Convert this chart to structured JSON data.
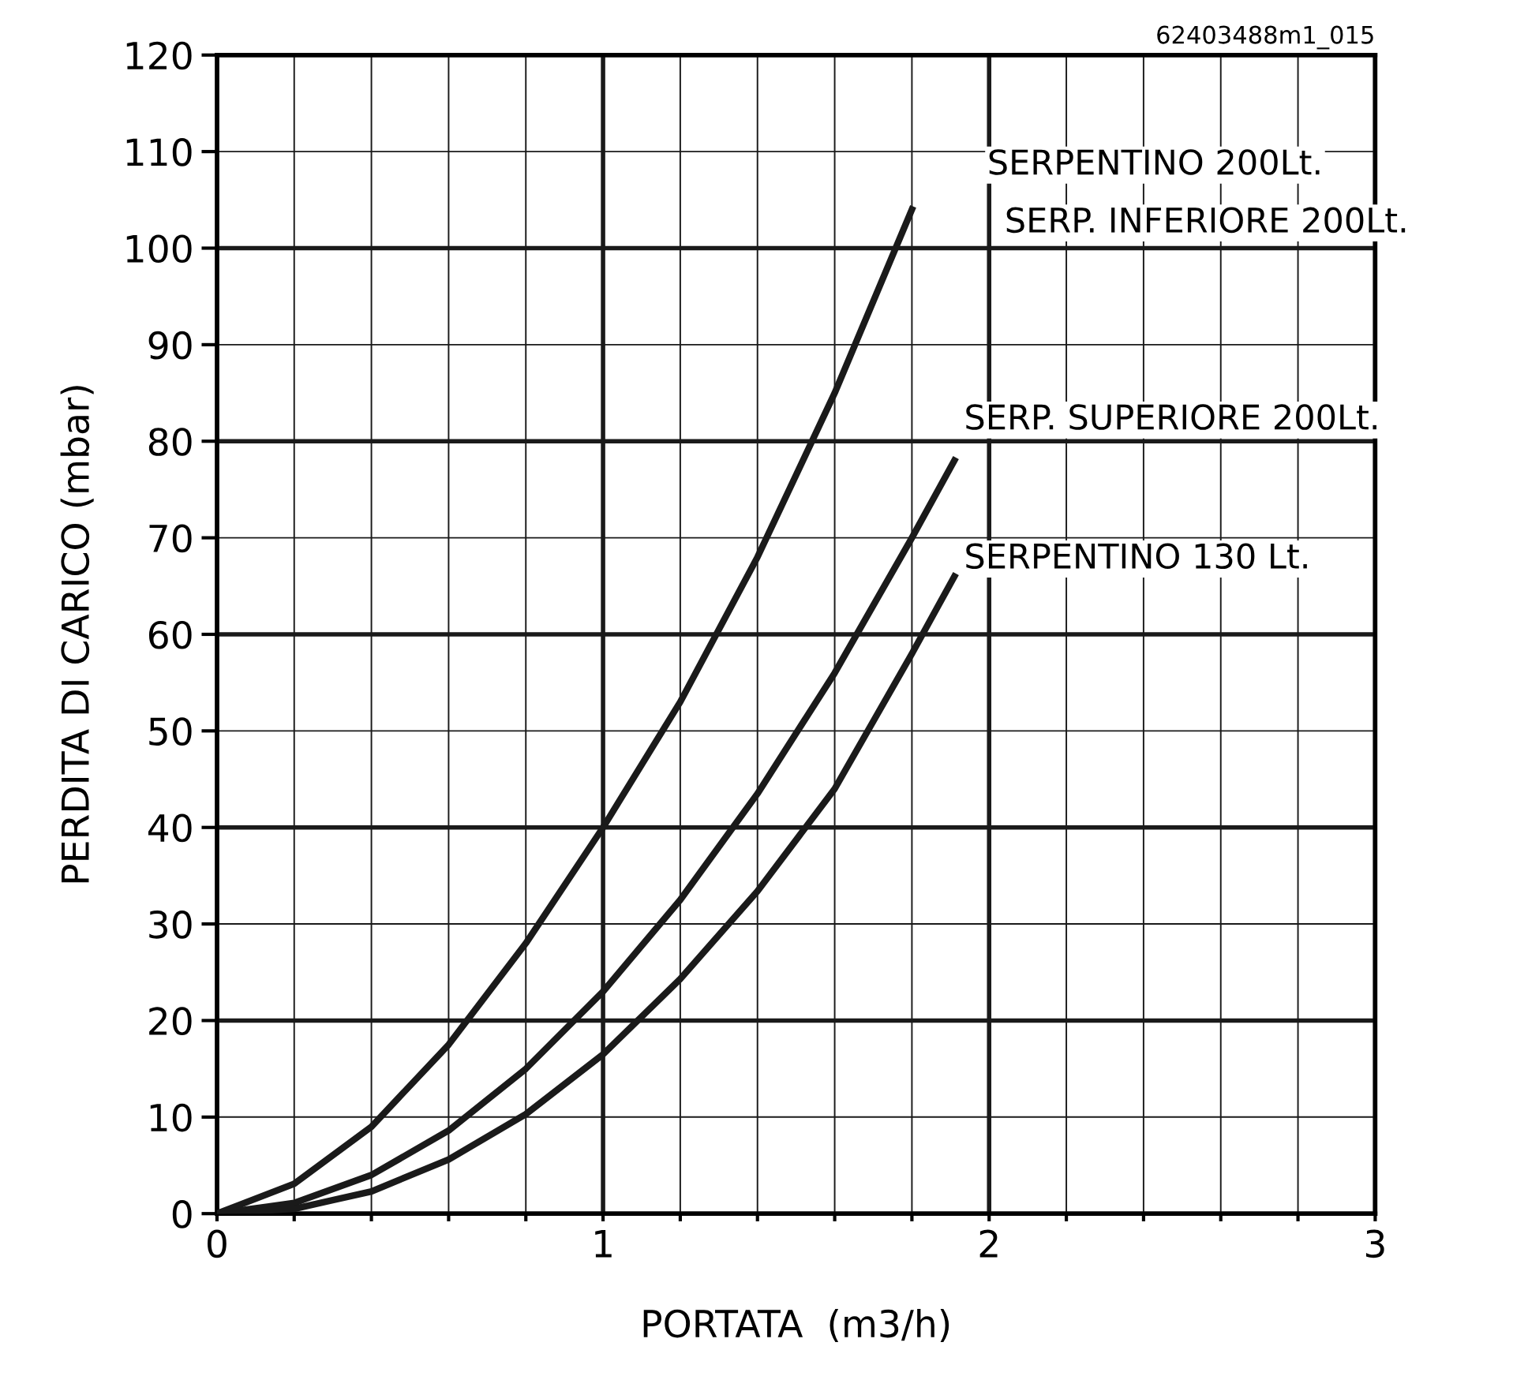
{
  "chart_data": {
    "type": "line",
    "xlabel": "PORTATA  (m3/h)",
    "ylabel": "PERDITA DI CARICO (mbar)",
    "annotations": [
      "62403488m1_015",
      "SERPENTINO 200Lt.",
      "SERP. INFERIORE 200Lt.",
      "SERP. SUPERIORE 200Lt.",
      "SERPENTINO 130 Lt."
    ],
    "series": [
      {
        "color": "#1a1a1a",
        "x": [
          0,
          0.2,
          0.4,
          0.6,
          0.8,
          1.0,
          1.2,
          1.4,
          1.6,
          1.8
        ],
        "values": [
          0,
          3.1,
          9,
          17.5,
          28,
          40,
          53,
          68,
          85,
          104
        ]
      },
      {
        "color": "#1a1a1a",
        "x": [
          0,
          0.2,
          0.4,
          0.6,
          0.8,
          1.0,
          1.2,
          1.4,
          1.6,
          1.8,
          1.91
        ],
        "values": [
          0,
          1.1,
          4,
          8.6,
          15,
          23,
          32.5,
          43.5,
          56,
          70,
          78
        ]
      },
      {
        "color": "#1a1a1a",
        "x": [
          0,
          0.2,
          0.4,
          0.6,
          0.8,
          1.0,
          1.2,
          1.4,
          1.6,
          1.8,
          1.91
        ],
        "values": [
          0,
          0.5,
          2.3,
          5.6,
          10.3,
          16.5,
          24.3,
          33.4,
          44,
          58,
          66
        ]
      }
    ],
    "xlim": [
      0,
      3
    ],
    "ylim": [
      0,
      120
    ],
    "xticks": [
      0,
      {
        "value": 0.2,
        "label": null
      },
      {
        "value": 0.4,
        "label": null
      },
      {
        "value": 0.6,
        "label": null
      },
      {
        "value": 0.8,
        "label": null
      },
      1,
      {
        "value": 1.2,
        "label": null
      },
      {
        "value": 1.4,
        "label": null
      },
      {
        "value": 1.6,
        "label": null
      },
      {
        "value": 1.8,
        "label": null
      },
      2,
      {
        "value": 2.2,
        "label": null
      },
      {
        "value": 2.4,
        "label": null
      },
      {
        "value": 2.6,
        "label": null
      },
      {
        "value": 2.8,
        "label": null
      },
      3
    ],
    "yticks": [
      0,
      10,
      20,
      30,
      40,
      50,
      60,
      70,
      80,
      90,
      100,
      110,
      120
    ],
    "grid": true,
    "marker": "none",
    "line_style": "solid",
    "legend": false
  }
}
